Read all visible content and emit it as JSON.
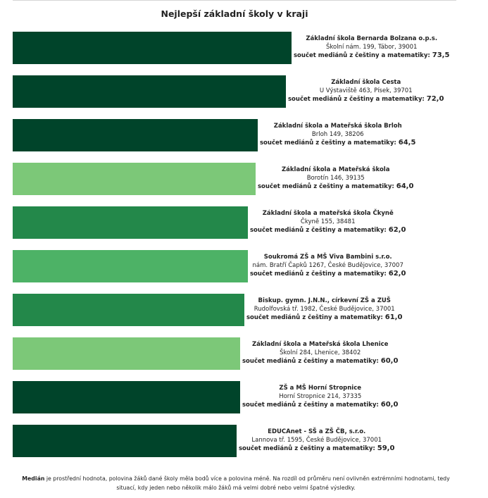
{
  "colors": {
    "dark": "#00442a",
    "medium": "#23884a",
    "bright": "#4db266",
    "light": "#7cc878"
  },
  "chart_data": {
    "type": "bar",
    "orientation": "horizontal",
    "title": "Nejlepší základní školy v kraji",
    "metric_label": "součet mediánů z češtiny a matematiky:",
    "xlim": [
      0,
      73.5
    ],
    "bars": [
      {
        "name": "Základní škola Bernarda Bolzana o.p.s.",
        "address": "Školní nám. 199, Tábor, 39001",
        "value": 73.5,
        "value_label": "73,5",
        "color": "dark"
      },
      {
        "name": "Základní škola Cesta",
        "address": "U Výstaviště 463, Písek, 39701",
        "value": 72.0,
        "value_label": "72,0",
        "color": "dark"
      },
      {
        "name": "Základní škola a Mateřská škola Brloh",
        "address": "Brloh 149, 38206",
        "value": 64.5,
        "value_label": "64,5",
        "color": "dark"
      },
      {
        "name": "Základní škola a Mateřská škola",
        "address": "Borotín 146, 39135",
        "value": 64.0,
        "value_label": "64,0",
        "color": "light"
      },
      {
        "name": "Základní škola a mateřská škola Čkyně",
        "address": "Čkyně 155, 38481",
        "value": 62.0,
        "value_label": "62,0",
        "color": "medium"
      },
      {
        "name": "Soukromá ZŠ a MŠ Viva Bambini s.r.o.",
        "address": "nám. Bratří Čapků 1267, České Budějovice, 37007",
        "value": 62.0,
        "value_label": "62,0",
        "color": "bright"
      },
      {
        "name": "Biskup. gymn. J.N.N., církevní ZŠ a ZUŠ",
        "address": "Rudolfovská tř. 1982, České Budějovice, 37001",
        "value": 61.0,
        "value_label": "61,0",
        "color": "medium"
      },
      {
        "name": "Základní škola a Mateřská škola Lhenice",
        "address": "Školní 284, Lhenice, 38402",
        "value": 60.0,
        "value_label": "60,0",
        "color": "light"
      },
      {
        "name": "ZŠ a MŠ Horní Stropnice",
        "address": "Horní Stropnice 214, 37335",
        "value": 60.0,
        "value_label": "60,0",
        "color": "dark"
      },
      {
        "name": "EDUCAnet - SŠ a ZŠ ČB, s.r.o.",
        "address": "Lannova tř. 1595, České Budějovice, 37001",
        "value": 59.0,
        "value_label": "59,0",
        "color": "dark"
      }
    ]
  },
  "footnote": {
    "term": "Medián",
    "text": " je prostřední hodnota, polovina žáků dané školy měla bodů více a polovina méně. Na rozdíl od průměru není ovlivněn extrémními hodnotami, tedy situací, kdy jeden nebo několik málo žáků má velmi dobré nebo velmi špatné výsledky."
  }
}
